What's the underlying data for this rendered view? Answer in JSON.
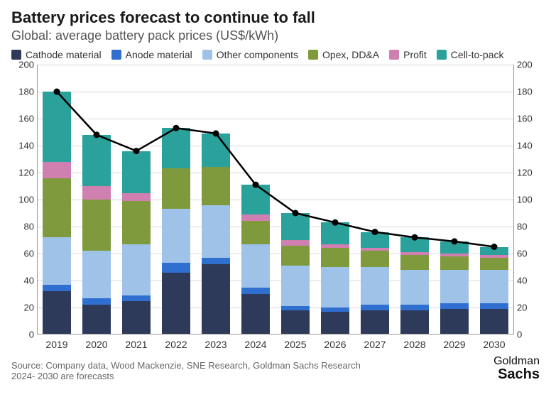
{
  "title": "Battery prices forecast to continue to fall",
  "subtitle": "Global: average battery pack prices (US$/kWh)",
  "background_color": "#ffffff",
  "grid_color": "#d9d9d9",
  "axis_color": "#9a9a9a",
  "text_color": "#333333",
  "title_fontsize": 22,
  "subtitle_fontsize": 18,
  "label_fontsize": 14,
  "tick_fontsize": 13,
  "series": [
    {
      "key": "cathode",
      "label": "Cathode material",
      "color": "#2e3a59"
    },
    {
      "key": "anode",
      "label": "Anode material",
      "color": "#2f6fd0"
    },
    {
      "key": "other",
      "label": "Other components",
      "color": "#9fc2e8"
    },
    {
      "key": "opex",
      "label": "Opex, DD&A",
      "color": "#7f9a3d"
    },
    {
      "key": "profit",
      "label": "Profit",
      "color": "#cf7fb0"
    },
    {
      "key": "celltopack",
      "label": "Cell-to-pack",
      "color": "#2aa19a"
    }
  ],
  "categories": [
    "2019",
    "2020",
    "2021",
    "2022",
    "2023",
    "2024",
    "2025",
    "2026",
    "2027",
    "2028",
    "2029",
    "2030"
  ],
  "data": {
    "cathode": [
      32,
      22,
      25,
      46,
      52,
      30,
      18,
      17,
      18,
      18,
      19,
      19
    ],
    "anode": [
      5,
      5,
      4,
      7,
      5,
      5,
      3,
      3,
      4,
      4,
      4,
      4
    ],
    "other": [
      35,
      35,
      38,
      40,
      39,
      32,
      30,
      30,
      28,
      26,
      25,
      25
    ],
    "opex": [
      44,
      38,
      32,
      30,
      28,
      17,
      15,
      14,
      12,
      11,
      10,
      9
    ],
    "profit": [
      12,
      10,
      6,
      0,
      0,
      5,
      4,
      3,
      2,
      2,
      2,
      2
    ],
    "celltopack": [
      52,
      38,
      31,
      30,
      25,
      22,
      20,
      16,
      12,
      11,
      9,
      6
    ]
  },
  "totals": [
    180,
    148,
    136,
    153,
    149,
    111,
    90,
    83,
    76,
    72,
    69,
    65
  ],
  "line": {
    "color": "#000000",
    "width": 2.5,
    "marker_radius": 4.5,
    "marker_fill": "#000000"
  },
  "yaxis": {
    "min": 0,
    "max": 200,
    "step": 20
  },
  "bar_width": 0.72,
  "source_line1": "Source: Company data, Wood Mackenzie, SNE Research, Goldman Sachs Research",
  "source_line2": "2024- 2030 are forecasts",
  "logo_top": "Goldman",
  "logo_bottom": "Sachs"
}
